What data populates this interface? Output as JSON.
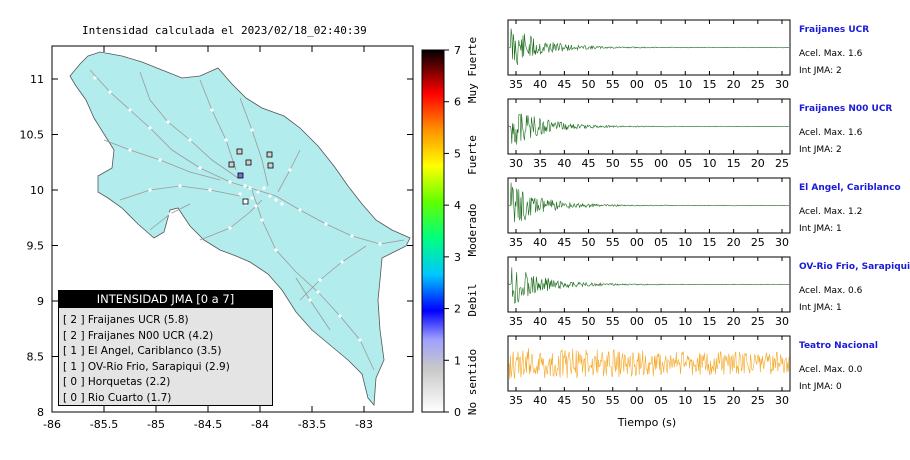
{
  "map": {
    "title": "Intensidad calculada el 2023/02/18_02:40:39",
    "x_ticks": [
      "-86",
      "-85.5",
      "-85",
      "-84.5",
      "-84",
      "-83.5",
      "-83"
    ],
    "y_ticks": [
      "11",
      "10.5",
      "10",
      "9.5",
      "9",
      "8.5",
      "8"
    ],
    "land_color": "#b3ecec"
  },
  "colorbar": {
    "ticks": [
      "0",
      "1",
      "2",
      "3",
      "4",
      "5",
      "6",
      "7"
    ],
    "labels": [
      "No sentido",
      "Debil",
      "Moderado",
      "Fuerte",
      "Muy Fuerte"
    ]
  },
  "legend": {
    "title": "INTENSIDAD JMA [0 a 7]",
    "items": [
      "[ 2 ]  Fraijanes UCR (5.8)",
      "[ 2 ]  Fraijanes N00 UCR (4.2)",
      "[ 1 ]  El Angel, Cariblanco (3.5)",
      "[ 1 ]  OV-Rio Frio, Sarapiqui (2.9)",
      "[ 0 ]  Horquetas (2.2)",
      "[ 0 ]  Rio Cuarto (1.7)"
    ]
  },
  "stations": [
    {
      "name": "Fraijanes UCR",
      "acel": "Acel. Max. 1.6",
      "jma": "Int JMA: 2",
      "color": "#1a6b1a",
      "ticks": [
        "35",
        "40",
        "45",
        "50",
        "55",
        "00",
        "05",
        "10",
        "15",
        "20",
        "25",
        "30"
      ]
    },
    {
      "name": "Fraijanes N00 UCR",
      "acel": "Acel. Max. 1.6",
      "jma": "Int JMA: 2",
      "color": "#1a6b1a",
      "ticks": [
        "30",
        "35",
        "40",
        "45",
        "50",
        "55",
        "00",
        "05",
        "10",
        "15",
        "20",
        "25"
      ]
    },
    {
      "name": "El Angel, Cariblanco",
      "acel": "Acel. Max. 1.2",
      "jma": "Int JMA: 1",
      "color": "#1a6b1a",
      "ticks": [
        "35",
        "40",
        "45",
        "50",
        "55",
        "00",
        "05",
        "10",
        "15",
        "20",
        "25",
        "30"
      ]
    },
    {
      "name": "OV-Rio Frio, Sarapiqui",
      "acel": "Acel. Max. 0.6",
      "jma": "Int JMA: 1",
      "color": "#1a6b1a",
      "ticks": [
        "35",
        "40",
        "45",
        "50",
        "55",
        "00",
        "05",
        "10",
        "15",
        "20",
        "25",
        "30"
      ]
    },
    {
      "name": "Teatro Nacional",
      "acel": "Acel. Max. 0.0",
      "jma": "Int JMA: 0",
      "color": "#f5a623",
      "ticks": [
        "35",
        "40",
        "45",
        "50",
        "55",
        "00",
        "05",
        "10",
        "15",
        "20",
        "25",
        "30"
      ]
    }
  ],
  "waveform_xlabel": "Tiempo (s)"
}
